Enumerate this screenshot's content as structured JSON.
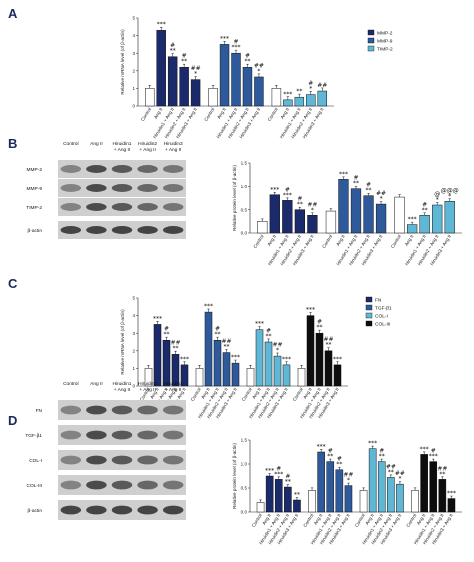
{
  "panels": [
    "A",
    "B",
    "C",
    "D"
  ],
  "colors": {
    "control_ang": "#1b2a6b",
    "c2": "#2e5a9c",
    "c3": "#5fb7d6",
    "c4": "#ffffff"
  },
  "chart_data": [
    {
      "panel": "A",
      "type": "bar",
      "ylabel": "Relative mRNA level (of β-actin)",
      "ylim": [
        0,
        5
      ],
      "yticks": [
        0,
        1,
        2,
        3,
        4,
        5
      ],
      "categories": [
        "Control",
        "Ang II",
        "Hiruidin1 + Ang II",
        "Hiruidin2 + Ang II",
        "Hiruidin3 + Ang II"
      ],
      "legend": [
        "MMP-2",
        "MMP-9",
        "TIMP-2"
      ],
      "series": [
        {
          "name": "MMP-2",
          "color": "#1b2a6b",
          "values": [
            1.0,
            4.3,
            2.8,
            2.2,
            1.5
          ],
          "sig": [
            "",
            "***",
            "#\n**",
            "#\n**",
            "##\n*"
          ]
        },
        {
          "name": "MMP-9",
          "color": "#2e5a9c",
          "values": [
            1.0,
            3.5,
            3.0,
            2.2,
            1.65
          ],
          "sig": [
            "",
            "***",
            "#\n***",
            "#\n**",
            "##\n*"
          ]
        },
        {
          "name": "TIMP-2",
          "color": "#5fb7d6",
          "values": [
            1.0,
            0.35,
            0.5,
            0.65,
            0.85
          ],
          "sig": [
            "",
            "***",
            "**",
            "#\n*",
            "##"
          ]
        }
      ]
    },
    {
      "panel": "B",
      "type": "bar",
      "ylabel": "Relative protein level (of β-actin)",
      "ylim": [
        0,
        1.5
      ],
      "yticks": [
        0.0,
        0.5,
        1.0,
        1.5
      ],
      "categories": [
        "Control",
        "Ang II",
        "Hiruidin1 + Ang II",
        "Hiruidin2 + Ang II",
        "Hiruidin3 + Ang II"
      ],
      "series": [
        {
          "name": "MMP-2",
          "color": "#1b2a6b",
          "values": [
            0.25,
            0.82,
            0.7,
            0.5,
            0.38
          ],
          "sig": [
            "",
            "***",
            "#\n***",
            "#\n**",
            "##\n*"
          ]
        },
        {
          "name": "MMP-9",
          "color": "#2e5a9c",
          "values": [
            0.47,
            1.15,
            0.95,
            0.8,
            0.62
          ],
          "sig": [
            "",
            "***",
            "#\n**",
            "#\n**",
            "##\n*"
          ]
        },
        {
          "name": "TIMP-2",
          "color": "#5fb7d6",
          "values": [
            0.77,
            0.18,
            0.38,
            0.6,
            0.68
          ],
          "sig": [
            "",
            "***",
            "#\n**",
            "@\n*",
            "@@@\n*"
          ]
        }
      ],
      "blot_labels": [
        "MMP-2",
        "MMP-9",
        "TIMP-2",
        "β-actin"
      ],
      "lane_labels": [
        "Control",
        "Ang II",
        "Hiruidin1\n+ Ang II",
        "Hiruidin2\n+ Ang II",
        "Hiruidin3\n+ Ang II"
      ]
    },
    {
      "panel": "C",
      "type": "bar",
      "ylabel": "Relative mRNA level (of β-actin)",
      "ylim": [
        0,
        5
      ],
      "yticks": [
        0,
        1,
        2,
        3,
        4,
        5
      ],
      "categories": [
        "Control",
        "Ang II",
        "Hiruidin1 + Ang II",
        "Hiruidin2 + Ang II",
        "Hiruidin3 + Ang II"
      ],
      "legend": [
        "FN",
        "TGF-β1",
        "COL-I",
        "COL-III"
      ],
      "series": [
        {
          "name": "FN",
          "color": "#1b2a6b",
          "values": [
            1.0,
            3.5,
            2.6,
            1.8,
            1.2
          ],
          "sig": [
            "",
            "***",
            "#\n**",
            "##\n**",
            "***"
          ]
        },
        {
          "name": "TGF-β1",
          "color": "#2e5a9c",
          "values": [
            1.0,
            4.2,
            2.6,
            1.9,
            1.3
          ],
          "sig": [
            "",
            "***",
            "#\n**",
            "##\n**",
            "***"
          ]
        },
        {
          "name": "COL-I",
          "color": "#5fb7d6",
          "values": [
            1.0,
            3.2,
            2.5,
            1.7,
            1.2
          ],
          "sig": [
            "",
            "***",
            "#\n**",
            "##\n*",
            "***"
          ]
        },
        {
          "name": "COL-III",
          "color": "#0d0d0d",
          "values": [
            1.0,
            4.0,
            3.0,
            2.0,
            1.2
          ],
          "sig": [
            "",
            "***",
            "#\n**",
            "##\n**",
            "***"
          ]
        }
      ]
    },
    {
      "panel": "D",
      "type": "bar",
      "ylabel": "Relative protein level (of β-actin)",
      "ylim": [
        0,
        1.5
      ],
      "yticks": [
        0.0,
        0.5,
        1.0,
        1.5
      ],
      "categories": [
        "Control",
        "Ang II",
        "Hiruidin1 + Ang II",
        "Hiruidin2 + Ang II",
        "Hiruidin3 + Ang II"
      ],
      "series": [
        {
          "name": "FN",
          "color": "#1b2a6b",
          "values": [
            0.2,
            0.75,
            0.68,
            0.52,
            0.25
          ],
          "sig": [
            "",
            "***",
            "#\n***",
            "#\n**",
            "**"
          ]
        },
        {
          "name": "TGF-β1",
          "color": "#2e5a9c",
          "values": [
            0.45,
            1.25,
            1.05,
            0.88,
            0.55
          ],
          "sig": [
            "",
            "***",
            "#\n**",
            "#\n**",
            "##\n*"
          ]
        },
        {
          "name": "COL-I",
          "color": "#5fb7d6",
          "values": [
            0.45,
            1.32,
            1.05,
            0.72,
            0.58
          ],
          "sig": [
            "",
            "***",
            "#\n**",
            "##\n**",
            "##\n*"
          ]
        },
        {
          "name": "COL-III",
          "color": "#0d0d0d",
          "values": [
            0.45,
            1.2,
            1.05,
            0.68,
            0.28
          ],
          "sig": [
            "",
            "***",
            "#\n***",
            "##\n**",
            "***"
          ]
        }
      ],
      "blot_labels": [
        "FN",
        "TGF-β1",
        "COL-I",
        "COL-III",
        "β-actin"
      ],
      "lane_labels": [
        "Control",
        "Ang II",
        "Hiruidin1\n+ Ang II",
        "Hiruidin2\n+ Ang II",
        "Hiruidin3\n+ Ang II"
      ]
    }
  ]
}
